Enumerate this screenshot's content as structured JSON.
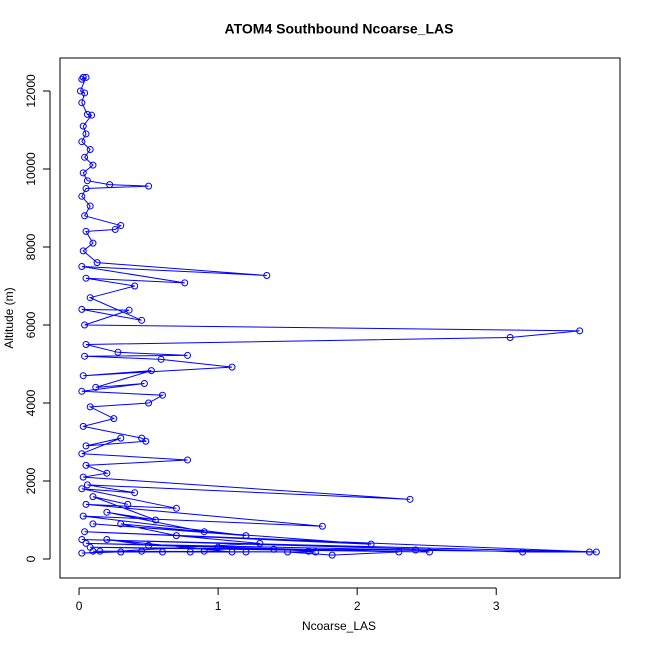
{
  "chart_data": {
    "type": "scatter",
    "title": "ATOM4 Southbound Ncoarse_LAS",
    "x_label": "Ncoarse_LAS",
    "y_label": "Altitude (m)",
    "color": "#0000ff",
    "connect": true,
    "xlim": [
      -0.137,
      3.89
    ],
    "ylim": [
      -487,
      12846
    ],
    "xticks": [
      0,
      1,
      2,
      3
    ],
    "yticks": [
      0,
      2000,
      4000,
      6000,
      8000,
      10000,
      12000
    ],
    "x": [
      0.03,
      0.02,
      0.05,
      0.01,
      0.04,
      0.02,
      0.06,
      0.09,
      0.03,
      0.05,
      0.02,
      0.08,
      0.04,
      0.1,
      0.03,
      0.06,
      0.22,
      0.5,
      0.05,
      0.02,
      0.08,
      0.04,
      0.3,
      0.26,
      0.05,
      0.1,
      0.03,
      0.13,
      1.35,
      0.02,
      0.76,
      0.05,
      0.4,
      0.08,
      0.45,
      0.02,
      0.36,
      0.04,
      3.6,
      3.1,
      0.05,
      0.28,
      0.78,
      0.04,
      0.59,
      1.1,
      0.03,
      0.52,
      0.12,
      0.47,
      0.02,
      0.6,
      0.5,
      0.08,
      0.25,
      0.03,
      0.45,
      0.48,
      0.05,
      0.3,
      0.02,
      0.78,
      0.05,
      0.2,
      0.03,
      2.38,
      0.06,
      0.4,
      0.02,
      0.7,
      0.05,
      1.75,
      0.03,
      1.2,
      0.1,
      2.1,
      0.04,
      3.72,
      3.19,
      0.02,
      3.67,
      0.08,
      2.52,
      2.42,
      0.05,
      2.3,
      1.82,
      1.5,
      0.1,
      1.2,
      0.9,
      0.6,
      0.3,
      0.15,
      1.7,
      1.65,
      1.4,
      1.0,
      0.5,
      0.2,
      1.1,
      0.8,
      0.45,
      0.02,
      1.3,
      0.7,
      0.3,
      0.9,
      0.2,
      0.55,
      0.1,
      0.35
    ],
    "y": [
      12350,
      12300,
      12350,
      12000,
      11950,
      11700,
      11400,
      11380,
      11100,
      10900,
      10700,
      10500,
      10300,
      10100,
      9900,
      9700,
      9600,
      9560,
      9500,
      9300,
      9050,
      8800,
      8550,
      8450,
      8400,
      8100,
      7900,
      7600,
      7270,
      7500,
      7080,
      7200,
      7000,
      6700,
      6120,
      6400,
      6380,
      6000,
      5850,
      5680,
      5500,
      5300,
      5220,
      5200,
      5120,
      4920,
      4700,
      4830,
      4400,
      4500,
      4300,
      4200,
      4000,
      3900,
      3600,
      3400,
      3100,
      3020,
      2900,
      3100,
      2700,
      2540,
      2400,
      2200,
      2100,
      1530,
      1900,
      1700,
      1800,
      1300,
      1400,
      840,
      1100,
      600,
      900,
      380,
      700,
      180,
      180,
      500,
      180,
      300,
      180,
      230,
      400,
      180,
      100,
      180,
      200,
      180,
      200,
      180,
      180,
      200,
      180,
      200,
      250,
      300,
      350,
      500,
      180,
      180,
      200,
      150,
      400,
      600,
      900,
      700,
      1200,
      1000,
      1600,
      1400
    ]
  }
}
